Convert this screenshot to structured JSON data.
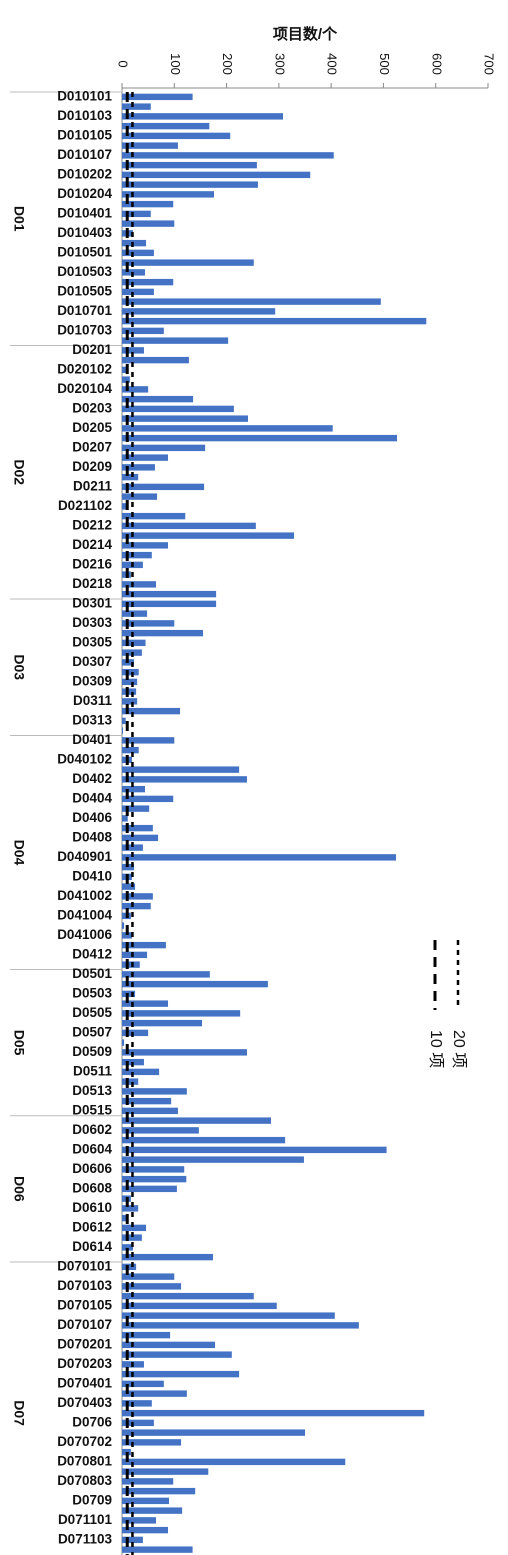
{
  "chart_data": {
    "type": "bar",
    "orientation": "horizontal",
    "title": "项目数/个",
    "color": "#4472c4",
    "xlim": [
      0,
      700
    ],
    "xticks": [
      0,
      100,
      200,
      300,
      400,
      500,
      600,
      700
    ],
    "reference_lines": [
      {
        "name": "10 项",
        "value": 10
      },
      {
        "name": "20 项",
        "value": 20
      }
    ],
    "groups": [
      {
        "name": "D01",
        "categories": [
          "D010101",
          null,
          "D010103",
          null,
          "D010105",
          null,
          "D010107",
          null,
          "D010202",
          null,
          "D010204",
          null,
          "D010401",
          null,
          "D010403",
          null,
          "D010501",
          null,
          "D010503",
          null,
          "D010505",
          null,
          "D010701",
          null,
          "D010703",
          null
        ],
        "values": [
          135,
          55,
          308,
          167,
          207,
          107,
          405,
          258,
          360,
          260,
          176,
          98,
          55,
          100,
          21,
          46,
          61,
          252,
          44,
          98,
          61,
          495,
          293,
          582,
          80,
          203
        ]
      },
      {
        "name": "D02",
        "categories": [
          "D0201",
          null,
          "D020102",
          null,
          "D020104",
          null,
          "D0203",
          null,
          "D0205",
          null,
          "D0207",
          null,
          "D0209",
          null,
          "D0211",
          null,
          "D021102",
          null,
          "D0212",
          null,
          "D0214",
          null,
          "D0216",
          null,
          "D0218",
          null
        ],
        "values": [
          42,
          128,
          10,
          15,
          50,
          136,
          214,
          241,
          403,
          526,
          159,
          88,
          63,
          31,
          157,
          67,
          8,
          121,
          256,
          329,
          88,
          57,
          40,
          17,
          65,
          180
        ]
      },
      {
        "name": "D03",
        "categories": [
          "D0301",
          null,
          "D0303",
          null,
          "D0305",
          null,
          "D0307",
          null,
          "D0309",
          null,
          "D0311",
          null,
          "D0313",
          null
        ],
        "values": [
          180,
          48,
          100,
          155,
          45,
          38,
          23,
          32,
          29,
          27,
          29,
          111,
          7,
          2
        ]
      },
      {
        "name": "D04",
        "categories": [
          "D0401",
          null,
          "D040102",
          null,
          "D0402",
          null,
          "D0404",
          null,
          "D0406",
          null,
          "D0408",
          null,
          "D040901",
          null,
          "D0410",
          null,
          "D041002",
          null,
          "D041004",
          null,
          "D041006",
          null,
          "D0412",
          null
        ],
        "values": [
          100,
          32,
          19,
          224,
          239,
          44,
          98,
          52,
          11,
          59,
          69,
          40,
          524,
          23,
          19,
          25,
          59,
          55,
          17,
          4,
          19,
          84,
          48,
          34
        ]
      },
      {
        "name": "D05",
        "categories": [
          "D0501",
          null,
          "D0503",
          null,
          "D0505",
          null,
          "D0507",
          null,
          "D0509",
          null,
          "D0511",
          null,
          "D0513",
          null,
          "D0515"
        ],
        "values": [
          168,
          279,
          25,
          88,
          226,
          153,
          50,
          4,
          239,
          42,
          71,
          31,
          124,
          94,
          107
        ]
      },
      {
        "name": "D06",
        "categories": [
          null,
          "D0602",
          null,
          "D0604",
          null,
          "D0606",
          null,
          "D0608",
          null,
          "D0610",
          null,
          "D0612",
          null,
          "D0614",
          null
        ],
        "values": [
          285,
          147,
          312,
          506,
          348,
          119,
          123,
          105,
          17,
          31,
          11,
          46,
          38,
          21,
          174
        ]
      },
      {
        "name": "D07",
        "categories": [
          "D070101",
          null,
          "D070103",
          null,
          "D070105",
          null,
          "D070107",
          null,
          "D070201",
          null,
          "D070203",
          null,
          "D070401",
          null,
          "D070403",
          null,
          "D0706",
          null,
          "D070702",
          null,
          "D070801",
          null,
          "D070803",
          null,
          "D0709",
          null,
          "D071101",
          null,
          "D071103",
          null,
          null
        ],
        "values": [
          27,
          100,
          113,
          252,
          296,
          407,
          453,
          92,
          178,
          210,
          42,
          224,
          80,
          124,
          57,
          578,
          61,
          350,
          113,
          17,
          427,
          165,
          98,
          140,
          90,
          115,
          65,
          88,
          40,
          135,
          20
        ]
      }
    ]
  }
}
